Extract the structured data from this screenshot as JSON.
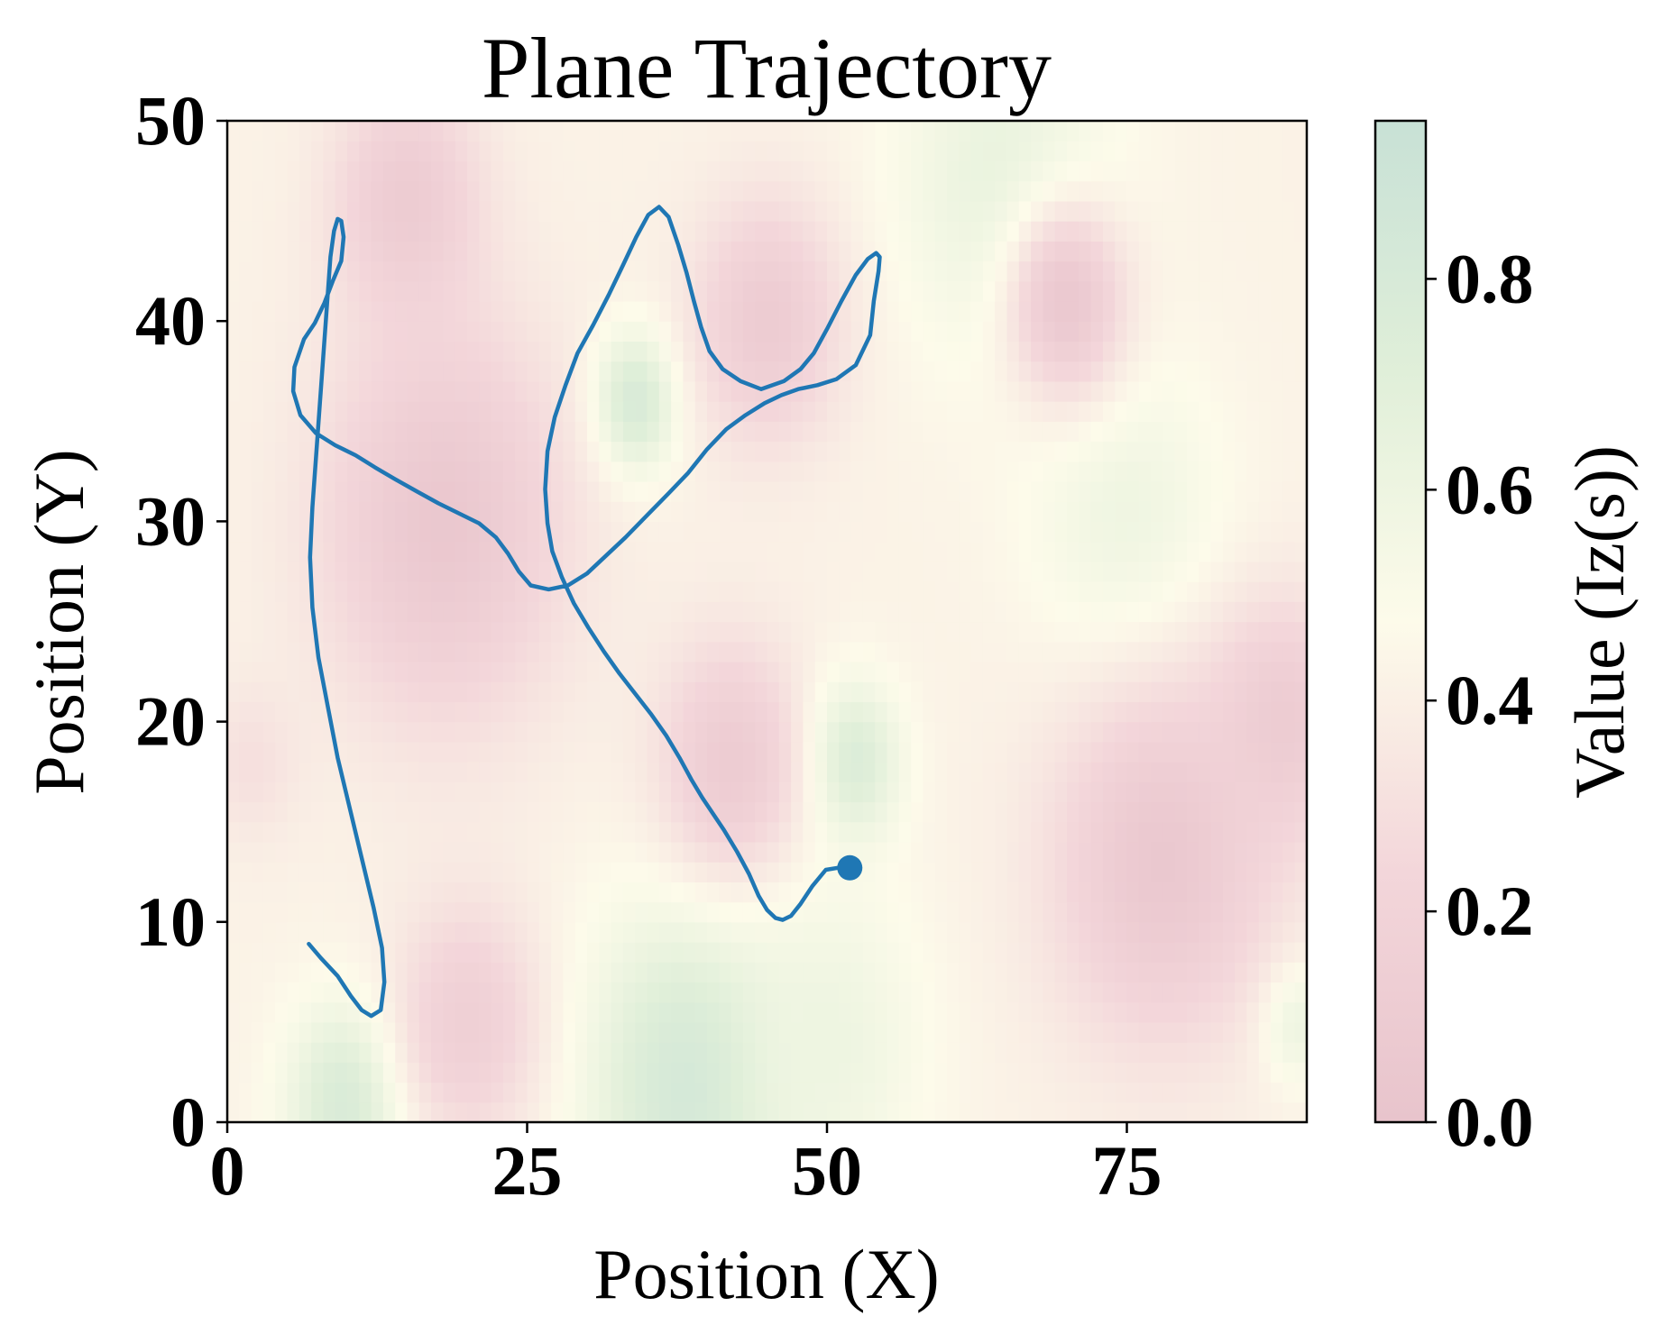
{
  "chart_data": {
    "type": "heatmap",
    "title": "Plane Trajectory",
    "xlabel": "Position (X)",
    "ylabel": "Position (Y)",
    "colorbar_label": "Value (Iz(s))",
    "xlim": [
      0,
      90
    ],
    "ylim": [
      0,
      50
    ],
    "x_ticks": [
      0,
      25,
      50,
      75
    ],
    "x_tick_labels": [
      "0",
      "25",
      "50",
      "75"
    ],
    "y_ticks": [
      0,
      10,
      20,
      30,
      40,
      50
    ],
    "y_tick_labels": [
      "0",
      "10",
      "20",
      "30",
      "40",
      "50"
    ],
    "colorbar_range": [
      0,
      0.95
    ],
    "colorbar_ticks": [
      0.0,
      0.2,
      0.4,
      0.6,
      0.8
    ],
    "colorbar_tick_labels": [
      "0.0",
      "0.2",
      "0.4",
      "0.6",
      "0.8"
    ],
    "colormap": [
      "#e8c4cc",
      "#f3d6da",
      "#fdfbea",
      "#e0efd9",
      "#c8e1d6"
    ],
    "trajectory_color": "#1f77b4",
    "field_blobs": [
      {
        "x": 34,
        "y": 36,
        "value": 0.85,
        "radius": 3.5
      },
      {
        "x": 52,
        "y": 18,
        "value": 0.8,
        "radius": 4
      },
      {
        "x": 39,
        "y": 2,
        "value": 0.85,
        "radius": 9
      },
      {
        "x": 10,
        "y": 1,
        "value": 0.8,
        "radius": 5
      },
      {
        "x": 65,
        "y": 47,
        "value": 0.65,
        "radius": 9
      },
      {
        "x": 75,
        "y": 30,
        "value": 0.6,
        "radius": 8
      },
      {
        "x": 50,
        "y": 4,
        "value": 0.6,
        "radius": 8
      },
      {
        "x": 89,
        "y": 5,
        "value": 0.65,
        "radius": 3
      },
      {
        "x": 70,
        "y": 41,
        "value": 0.05,
        "radius": 5
      },
      {
        "x": 18,
        "y": 30,
        "value": 0.05,
        "radius": 10
      },
      {
        "x": 78,
        "y": 13,
        "value": 0.05,
        "radius": 9
      },
      {
        "x": 88,
        "y": 20,
        "value": 0.1,
        "radius": 6
      },
      {
        "x": 15,
        "y": 46,
        "value": 0.1,
        "radius": 6
      },
      {
        "x": 45,
        "y": 40,
        "value": 0.1,
        "radius": 6
      },
      {
        "x": 42,
        "y": 18,
        "value": 0.1,
        "radius": 6
      },
      {
        "x": 20,
        "y": 5,
        "value": 0.15,
        "radius": 6
      },
      {
        "x": 2,
        "y": 18,
        "value": 0.3,
        "radius": 4
      }
    ],
    "field_base": 0.42,
    "trajectory": {
      "x": [
        6.8,
        7.8,
        9.2,
        10.3,
        11.2,
        12.0,
        12.8,
        13.1,
        12.9,
        12.2,
        11.2,
        10.2,
        9.2,
        8.4,
        7.6,
        7.1,
        6.9,
        7.1,
        7.4,
        7.7,
        8.0,
        8.3,
        8.6,
        8.9,
        9.2,
        9.5,
        9.7,
        9.5,
        8.8,
        8.1,
        7.3,
        6.4,
        5.6,
        5.5,
        6.1,
        7.4,
        9.0,
        10.7,
        12.3,
        14.0,
        15.8,
        17.6,
        19.3,
        21.0,
        22.4,
        23.4,
        24.3,
        25.3,
        26.8,
        28.4,
        30.0,
        31.6,
        33.2,
        35.0,
        36.8,
        38.4,
        40.0,
        41.6,
        43.2,
        44.8,
        46.2,
        47.6,
        49.2,
        50.8,
        52.4,
        53.6,
        53.9,
        54.3,
        54.4,
        54.1,
        53.4,
        52.4,
        51.2,
        50.0,
        48.9,
        47.8,
        46.4,
        44.5,
        42.8,
        41.3,
        40.2,
        39.5,
        38.9,
        38.3,
        37.6,
        36.8,
        36.0,
        35.1,
        34.1,
        33.0,
        31.8,
        30.5,
        29.2,
        28.2,
        27.3,
        26.7,
        26.5,
        26.7,
        27.1,
        27.9,
        28.9,
        30.1,
        31.4,
        32.7,
        34.0,
        35.3,
        36.6,
        37.7,
        38.7,
        39.6,
        40.5,
        41.4,
        42.5,
        43.5,
        44.3,
        45.0,
        45.7,
        46.3,
        47.0,
        47.8,
        48.8,
        49.9,
        50.9,
        51.6,
        51.9
      ],
      "y": [
        8.9,
        8.2,
        7.3,
        6.3,
        5.6,
        5.3,
        5.6,
        7.0,
        8.7,
        10.7,
        13.2,
        15.7,
        18.2,
        20.7,
        23.2,
        25.7,
        28.2,
        30.7,
        33.2,
        35.7,
        38.2,
        40.7,
        43.2,
        44.5,
        45.1,
        45.0,
        44.2,
        43.0,
        42.0,
        40.9,
        39.9,
        39.1,
        37.7,
        36.5,
        35.3,
        34.4,
        33.8,
        33.3,
        32.7,
        32.1,
        31.5,
        30.9,
        30.4,
        29.9,
        29.2,
        28.4,
        27.5,
        26.8,
        26.6,
        26.8,
        27.4,
        28.3,
        29.2,
        30.3,
        31.4,
        32.4,
        33.6,
        34.6,
        35.3,
        35.9,
        36.3,
        36.6,
        36.8,
        37.1,
        37.8,
        39.3,
        41.0,
        42.5,
        43.2,
        43.4,
        43.1,
        42.3,
        41.0,
        39.6,
        38.4,
        37.6,
        37.0,
        36.6,
        37.0,
        37.6,
        38.5,
        39.7,
        41.0,
        42.4,
        43.8,
        45.2,
        45.7,
        45.3,
        44.2,
        42.8,
        41.3,
        39.8,
        38.4,
        36.8,
        35.2,
        33.5,
        31.6,
        29.9,
        28.5,
        27.2,
        25.9,
        24.7,
        23.5,
        22.4,
        21.4,
        20.4,
        19.3,
        18.2,
        17.1,
        16.2,
        15.4,
        14.6,
        13.5,
        12.4,
        11.3,
        10.6,
        10.2,
        10.1,
        10.3,
        10.9,
        11.8,
        12.6,
        12.7
      ]
    },
    "end_marker": {
      "x": 51.9,
      "y": 12.7
    }
  }
}
